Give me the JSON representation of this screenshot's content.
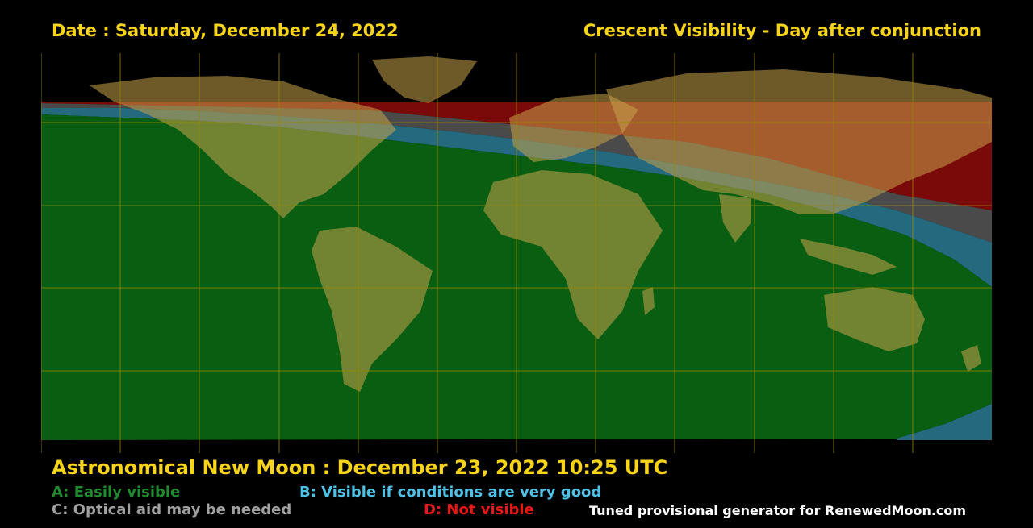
{
  "header": {
    "date": "Date : Saturday, December 24, 2022",
    "title": "Crescent Visibility - Day after conjunction"
  },
  "conjunction": "Astronomical New Moon : December 23, 2022 10:25 UTC",
  "legend": {
    "a": "A: Easily visible",
    "b": "B: Visible if conditions are very good",
    "c": "C: Optical aid may be needed",
    "d": "D: Not visible"
  },
  "credit": "Tuned provisional generator for RenewedMoon.com",
  "colors": {
    "title_text": "#f7d417",
    "zone_a": "#0a5e12",
    "zone_b": "#24697d",
    "zone_c": "#4a4a4a",
    "zone_d": "#7a0a0a",
    "legend_a": "#1f8a2e",
    "legend_b": "#4ec2e6",
    "legend_c": "#a0a0a0",
    "legend_d": "#e81818",
    "grid": "#9a8a00"
  },
  "map": {
    "projection": "equirectangular",
    "grid_spacing_degrees": 30,
    "zones_in_order_north_to_south": [
      "D",
      "C",
      "B",
      "A"
    ]
  }
}
